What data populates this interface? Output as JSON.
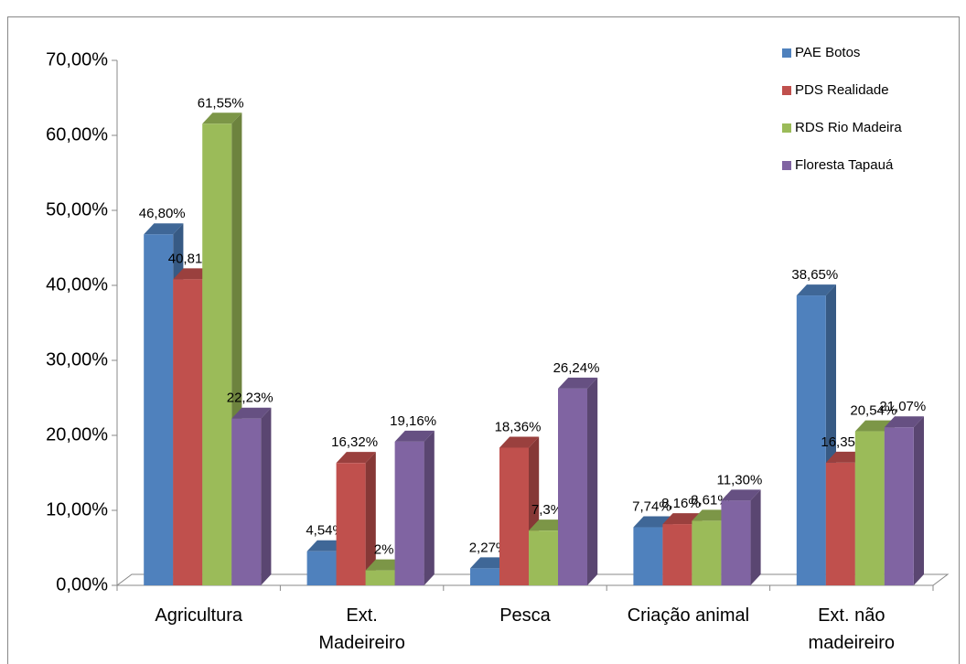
{
  "chart_data": {
    "type": "bar3d",
    "categories": [
      "Agricultura",
      "Ext. Madeireiro",
      "Pesca",
      "Criação animal",
      "Ext. não madeireiro"
    ],
    "series": [
      {
        "name": "PAE Botos",
        "color": "#4f81bd",
        "values": [
          46.8,
          4.54,
          2.27,
          7.74,
          38.65
        ],
        "value_labels": [
          "46,80%",
          "4,54%",
          "2,27%",
          "7,74%",
          "38,65%"
        ]
      },
      {
        "name": "PDS Realidade",
        "color": "#c0504d",
        "values": [
          40.81,
          16.32,
          18.36,
          8.16,
          16.35
        ],
        "value_labels": [
          "40,81%",
          "16,32%",
          "18,36%",
          "8,16%",
          "16,35%"
        ]
      },
      {
        "name": "RDS Rio Madeira",
        "color": "#9bbb59",
        "values": [
          61.55,
          2,
          7.3,
          8.61,
          20.54
        ],
        "value_labels": [
          "61,55%",
          "2%",
          "7,3%",
          "8,61%",
          "20,54%"
        ]
      },
      {
        "name": "Floresta Tapauá",
        "color": "#8064a2",
        "values": [
          22.23,
          19.16,
          26.24,
          11.3,
          21.07
        ],
        "value_labels": [
          "22,23%",
          "19,16%",
          "26,24%",
          "11,30%",
          "21,07%"
        ]
      }
    ],
    "ylim": [
      0,
      70
    ],
    "yticks": [
      {
        "value": 0,
        "label": "0,00%"
      },
      {
        "value": 10,
        "label": "10,00%"
      },
      {
        "value": 20,
        "label": "20,00%"
      },
      {
        "value": 30,
        "label": "30,00%"
      },
      {
        "value": 40,
        "label": "40,00%"
      },
      {
        "value": 50,
        "label": "50,00%"
      },
      {
        "value": 60,
        "label": "60,00%"
      },
      {
        "value": 70,
        "label": "70,00%"
      }
    ],
    "grid": false,
    "legend": "top-right"
  }
}
